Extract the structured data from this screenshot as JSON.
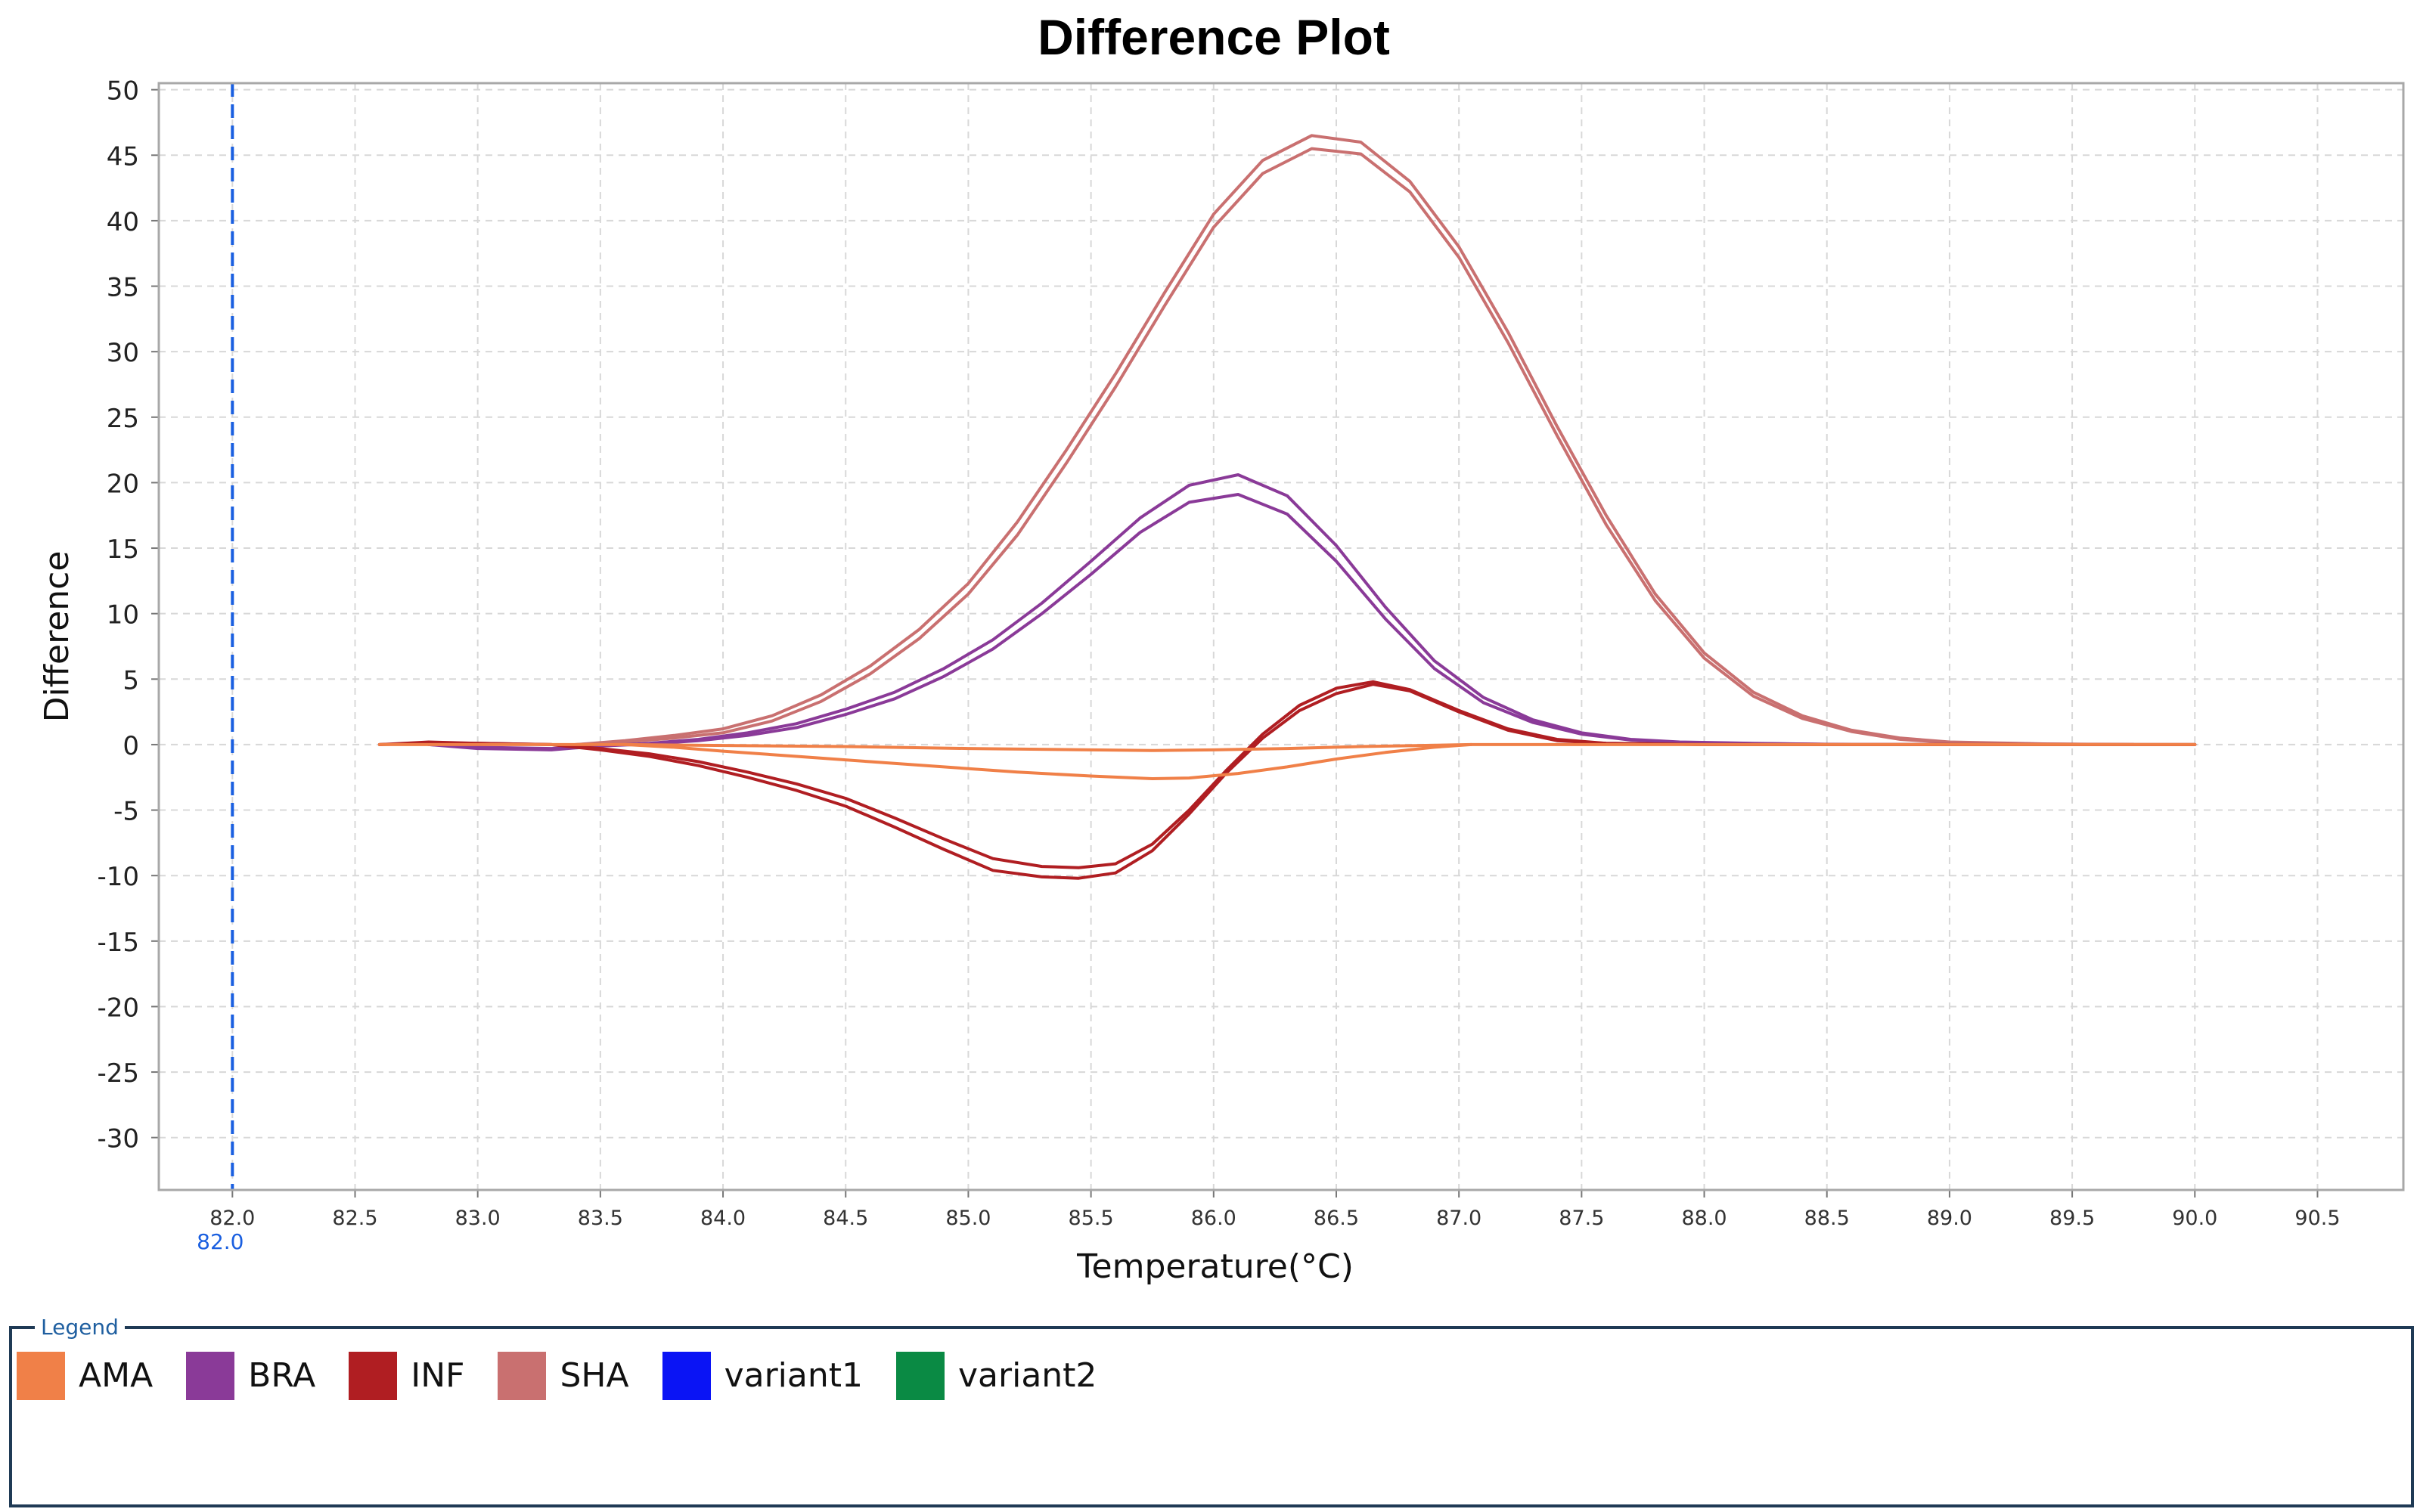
{
  "chart_data": {
    "type": "line",
    "title": "Difference Plot",
    "xlabel": "Temperature(°C)",
    "ylabel": "Difference",
    "xlim": [
      81.7,
      90.85
    ],
    "ylim": [
      -34,
      50.5
    ],
    "x_ticks": [
      "82.0",
      "82.5",
      "83.0",
      "83.5",
      "84.0",
      "84.5",
      "85.0",
      "85.5",
      "86.0",
      "86.5",
      "87.0",
      "87.5",
      "88.0",
      "88.5",
      "89.0",
      "89.5",
      "90.0",
      "90.5"
    ],
    "y_ticks": [
      "50",
      "45",
      "40",
      "35",
      "30",
      "25",
      "20",
      "15",
      "10",
      "5",
      "0",
      "-5",
      "-10",
      "-15",
      "-20",
      "-25",
      "-30"
    ],
    "grid": true,
    "marker_line": {
      "x": 82.0,
      "label": "82.0",
      "color": "#1a5fe0"
    },
    "series": [
      {
        "name": "SHA",
        "color": "#c97070",
        "x": [
          83.4,
          83.6,
          83.8,
          84.0,
          84.2,
          84.4,
          84.6,
          84.8,
          85.0,
          85.2,
          85.4,
          85.6,
          85.8,
          86.0,
          86.2,
          86.4,
          86.6,
          86.8,
          87.0,
          87.2,
          87.4,
          87.6,
          87.8,
          88.0,
          88.2,
          88.4,
          88.6,
          88.8,
          89.0,
          89.4,
          89.75
        ],
        "y": [
          0,
          0.3,
          0.7,
          1.2,
          2.2,
          3.8,
          6.0,
          8.8,
          12.3,
          17.0,
          22.5,
          28.3,
          34.5,
          40.5,
          44.6,
          46.5,
          46.0,
          43.0,
          38.0,
          31.5,
          24.3,
          17.5,
          11.5,
          7.0,
          4.0,
          2.2,
          1.1,
          0.5,
          0.2,
          0.05,
          0
        ]
      },
      {
        "name": "SHA",
        "color": "#c97070",
        "x": [
          83.4,
          83.6,
          83.8,
          84.0,
          84.2,
          84.4,
          84.6,
          84.8,
          85.0,
          85.2,
          85.4,
          85.6,
          85.8,
          86.0,
          86.2,
          86.4,
          86.6,
          86.8,
          87.0,
          87.2,
          87.4,
          87.6,
          87.8,
          88.0,
          88.2,
          88.4,
          88.6,
          88.8,
          89.0,
          89.4,
          89.75
        ],
        "y": [
          0,
          0.2,
          0.5,
          0.9,
          1.8,
          3.3,
          5.4,
          8.1,
          11.5,
          16.0,
          21.5,
          27.3,
          33.5,
          39.5,
          43.6,
          45.5,
          45.1,
          42.2,
          37.2,
          30.7,
          23.6,
          16.8,
          11.0,
          6.6,
          3.7,
          2.0,
          1.0,
          0.4,
          0.15,
          0.04,
          0
        ]
      },
      {
        "name": "BRA",
        "color": "#8a3a98",
        "x": [
          82.8,
          83.0,
          83.3,
          83.5,
          83.7,
          83.9,
          84.1,
          84.3,
          84.5,
          84.7,
          84.9,
          85.1,
          85.3,
          85.5,
          85.7,
          85.9,
          86.1,
          86.3,
          86.5,
          86.7,
          86.9,
          87.1,
          87.3,
          87.5,
          87.7,
          87.9,
          88.2,
          88.6,
          89.0
        ],
        "y": [
          0,
          -0.3,
          -0.4,
          -0.1,
          0.1,
          0.4,
          0.9,
          1.6,
          2.7,
          4.0,
          5.8,
          8.0,
          10.8,
          14.0,
          17.3,
          19.8,
          20.6,
          19.0,
          15.2,
          10.5,
          6.4,
          3.6,
          1.9,
          0.9,
          0.4,
          0.2,
          0.1,
          0,
          0
        ]
      },
      {
        "name": "BRA",
        "color": "#8a3a98",
        "x": [
          82.8,
          83.0,
          83.3,
          83.5,
          83.7,
          83.9,
          84.1,
          84.3,
          84.5,
          84.7,
          84.9,
          85.1,
          85.3,
          85.5,
          85.7,
          85.9,
          86.1,
          86.3,
          86.5,
          86.7,
          86.9,
          87.1,
          87.3,
          87.5,
          87.7,
          87.9,
          88.2,
          88.6,
          89.0
        ],
        "y": [
          0,
          -0.2,
          -0.3,
          -0.1,
          0.05,
          0.3,
          0.7,
          1.3,
          2.3,
          3.5,
          5.2,
          7.3,
          10.0,
          13.0,
          16.2,
          18.5,
          19.1,
          17.6,
          14.0,
          9.6,
          5.8,
          3.2,
          1.7,
          0.8,
          0.35,
          0.15,
          0.08,
          0,
          0
        ]
      },
      {
        "name": "INF",
        "color": "#b01e22",
        "x": [
          82.6,
          82.8,
          83.0,
          83.3,
          83.5,
          83.7,
          83.9,
          84.1,
          84.3,
          84.5,
          84.7,
          84.9,
          85.1,
          85.3,
          85.45,
          85.6,
          85.75,
          85.9,
          86.05,
          86.2,
          86.35,
          86.5,
          86.65,
          86.8,
          87.0,
          87.2,
          87.4,
          87.6,
          88.0,
          89.0,
          90.0
        ],
        "y": [
          0,
          0.2,
          0.1,
          0,
          -0.3,
          -0.7,
          -1.3,
          -2.1,
          -3.0,
          -4.1,
          -5.6,
          -7.2,
          -8.7,
          -9.3,
          -9.4,
          -9.1,
          -7.6,
          -5.0,
          -2.0,
          0.8,
          3.0,
          4.3,
          4.8,
          4.2,
          2.6,
          1.2,
          0.4,
          0.1,
          0,
          0,
          0
        ]
      },
      {
        "name": "INF",
        "color": "#b01e22",
        "x": [
          82.6,
          82.8,
          83.0,
          83.3,
          83.5,
          83.7,
          83.9,
          84.1,
          84.3,
          84.5,
          84.7,
          84.9,
          85.1,
          85.3,
          85.45,
          85.6,
          85.75,
          85.9,
          86.05,
          86.2,
          86.35,
          86.5,
          86.65,
          86.8,
          87.0,
          87.2,
          87.4,
          87.6,
          88.0,
          89.0,
          90.0
        ],
        "y": [
          0,
          0.1,
          0.1,
          0,
          -0.4,
          -0.9,
          -1.6,
          -2.5,
          -3.5,
          -4.7,
          -6.3,
          -8.0,
          -9.6,
          -10.1,
          -10.2,
          -9.8,
          -8.1,
          -5.3,
          -2.2,
          0.5,
          2.6,
          3.9,
          4.6,
          4.1,
          2.5,
          1.1,
          0.3,
          0.1,
          0,
          0,
          0
        ]
      },
      {
        "name": "AMA",
        "color": "#f08048",
        "x": [
          82.6,
          83.6,
          84.5,
          85.0,
          85.5,
          85.75,
          86.0,
          86.3,
          86.6,
          87.05,
          90.0
        ],
        "y": [
          0,
          0,
          -0.15,
          -0.3,
          -0.4,
          -0.45,
          -0.4,
          -0.3,
          -0.15,
          0,
          0
        ]
      },
      {
        "name": "AMA",
        "color": "#f08048",
        "x": [
          83.6,
          83.8,
          84.0,
          84.3,
          84.6,
          84.9,
          85.2,
          85.5,
          85.75,
          85.9,
          86.1,
          86.3,
          86.5,
          86.7,
          86.9,
          87.05
        ],
        "y": [
          0,
          -0.2,
          -0.5,
          -0.9,
          -1.3,
          -1.7,
          -2.1,
          -2.4,
          -2.6,
          -2.55,
          -2.2,
          -1.7,
          -1.1,
          -0.6,
          -0.2,
          0
        ]
      }
    ],
    "legend": {
      "title": "Legend",
      "items": [
        {
          "label": "AMA",
          "color": "#f08048"
        },
        {
          "label": "BRA",
          "color": "#8a3a98"
        },
        {
          "label": "INF",
          "color": "#b01e22"
        },
        {
          "label": "SHA",
          "color": "#c97070"
        },
        {
          "label": "variant1",
          "color": "#0a14f5"
        },
        {
          "label": "variant2",
          "color": "#0a8a44"
        }
      ]
    }
  }
}
